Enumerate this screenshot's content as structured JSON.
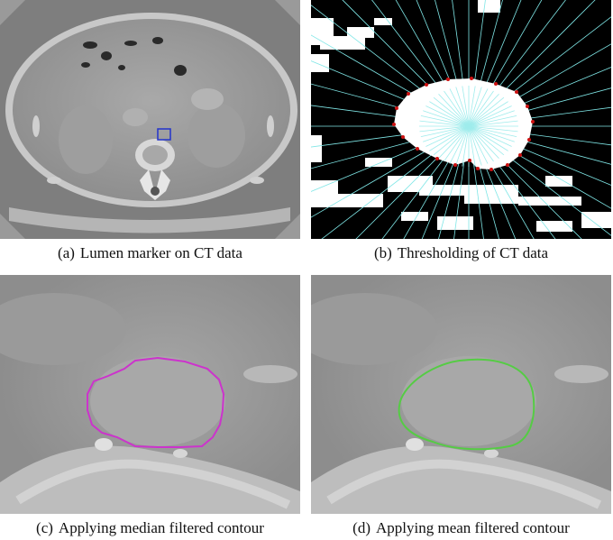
{
  "figure": {
    "panels": [
      {
        "id": "a",
        "label": "(a)",
        "caption": "Lumen marker on CT data"
      },
      {
        "id": "b",
        "label": "(b)",
        "caption": "Thresholding of CT data"
      },
      {
        "id": "c",
        "label": "(c)",
        "caption": "Applying median filtered contour"
      },
      {
        "id": "d",
        "label": "(d)",
        "caption": "Applying mean filtered contour"
      }
    ],
    "colors": {
      "marker_box": "#2233cc",
      "ray": "#7fe6e6",
      "boundary_point": "#cc1111",
      "median_contour": "#cc33cc",
      "mean_contour": "#55cc44"
    }
  }
}
